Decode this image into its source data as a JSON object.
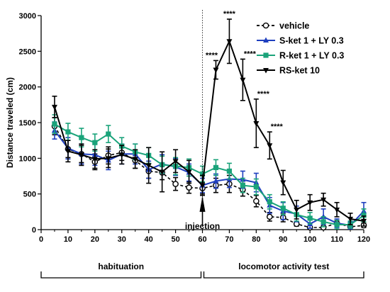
{
  "chart_data": {
    "type": "line",
    "title": "",
    "xlabel": "",
    "ylabel": "Distance traveled (cm)",
    "xlim": [
      0,
      120
    ],
    "ylim": [
      0,
      3000
    ],
    "xticks": [
      "0",
      "10",
      "20",
      "30",
      "40",
      "50",
      "60",
      "70",
      "80",
      "90",
      "100",
      "110",
      "120"
    ],
    "yticks": [
      "0",
      "500",
      "1000",
      "1500",
      "2000",
      "2500",
      "3000"
    ],
    "x": [
      5,
      10,
      15,
      20,
      25,
      30,
      35,
      40,
      45,
      50,
      55,
      60,
      65,
      70,
      75,
      80,
      85,
      90,
      95,
      100,
      105,
      110,
      115,
      120
    ],
    "legend_position": "top-right",
    "grid": false,
    "series": [
      {
        "name": "vehicle",
        "color": "#000000",
        "style": "dashed",
        "marker": "open-circle",
        "values": [
          1450,
          1130,
          1060,
          950,
          1040,
          1080,
          970,
          820,
          800,
          640,
          590,
          580,
          620,
          640,
          560,
          400,
          180,
          170,
          80,
          30,
          30,
          90,
          40,
          60
        ],
        "err": [
          120,
          120,
          120,
          110,
          120,
          110,
          110,
          100,
          100,
          90,
          80,
          80,
          100,
          120,
          90,
          80,
          60,
          60,
          30,
          20,
          20,
          40,
          30,
          30
        ]
      },
      {
        "name": "S-ket 1 + LY 0.3",
        "color": "#1f3fbf",
        "style": "solid",
        "marker": "triangle-up",
        "values": [
          1390,
          1140,
          1060,
          1050,
          970,
          1060,
          1060,
          840,
          920,
          880,
          800,
          620,
          680,
          710,
          700,
          660,
          340,
          260,
          220,
          80,
          180,
          90,
          60,
          260
        ],
        "err": [
          120,
          150,
          140,
          150,
          130,
          140,
          140,
          120,
          130,
          120,
          120,
          100,
          100,
          120,
          120,
          130,
          110,
          120,
          110,
          60,
          110,
          60,
          50,
          120
        ]
      },
      {
        "name": "R-ket 1 + LY 0.3",
        "color": "#1aa37a",
        "style": "solid",
        "marker": "square",
        "values": [
          1480,
          1370,
          1290,
          1220,
          1340,
          1170,
          1090,
          1040,
          910,
          890,
          870,
          780,
          870,
          820,
          620,
          600,
          390,
          300,
          210,
          160,
          110,
          70,
          70,
          200
        ],
        "err": [
          130,
          120,
          130,
          120,
          120,
          120,
          110,
          110,
          120,
          120,
          120,
          110,
          110,
          110,
          100,
          110,
          100,
          90,
          90,
          80,
          70,
          60,
          50,
          90
        ]
      },
      {
        "name": "RS-ket 10",
        "color": "#000000",
        "style": "solid",
        "marker": "triangle-down",
        "values": [
          1720,
          1100,
          1050,
          990,
          1000,
          1050,
          990,
          900,
          810,
          960,
          810,
          620,
          2240,
          2640,
          2100,
          1490,
          1180,
          660,
          280,
          380,
          420,
          280,
          150,
          120
        ],
        "err": [
          150,
          150,
          150,
          130,
          130,
          130,
          130,
          250,
          280,
          160,
          160,
          140,
          130,
          310,
          290,
          340,
          190,
          170,
          130,
          110,
          90,
          100,
          80,
          70
        ]
      }
    ],
    "significance": [
      {
        "x": 65,
        "label": "****"
      },
      {
        "x": 70,
        "label": "****"
      },
      {
        "x": 75,
        "label": "****"
      },
      {
        "x": 80,
        "label": "****"
      },
      {
        "x": 85,
        "label": "****"
      }
    ],
    "injection": {
      "x": 60,
      "label": "injection"
    },
    "phases": [
      {
        "label": "habituation",
        "x_start": 0,
        "x_end": 60
      },
      {
        "label": "locomotor activity test",
        "x_start": 60,
        "x_end": 120
      }
    ]
  }
}
